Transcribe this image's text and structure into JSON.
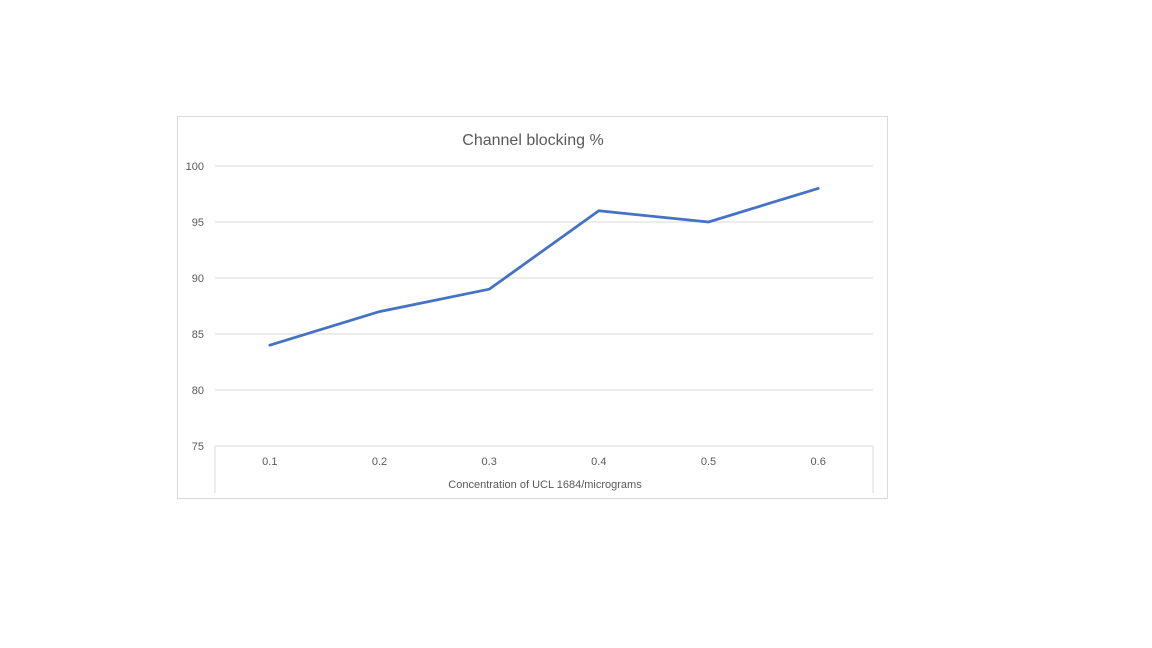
{
  "chart_data": {
    "type": "line",
    "title": "Channel blocking %",
    "xlabel": "Concentration of UCL 1684/micrograms",
    "ylabel": "",
    "categories": [
      "0.1",
      "0.2",
      "0.3",
      "0.4",
      "0.5",
      "0.6"
    ],
    "series": [
      {
        "values": [
          84,
          87,
          89,
          96,
          95,
          98
        ],
        "color": "#4472c4"
      }
    ],
    "ylim": [
      75,
      100
    ],
    "yticks": [
      "75",
      "80",
      "85",
      "90",
      "95",
      "100"
    ],
    "grid": true,
    "legend": "none"
  }
}
